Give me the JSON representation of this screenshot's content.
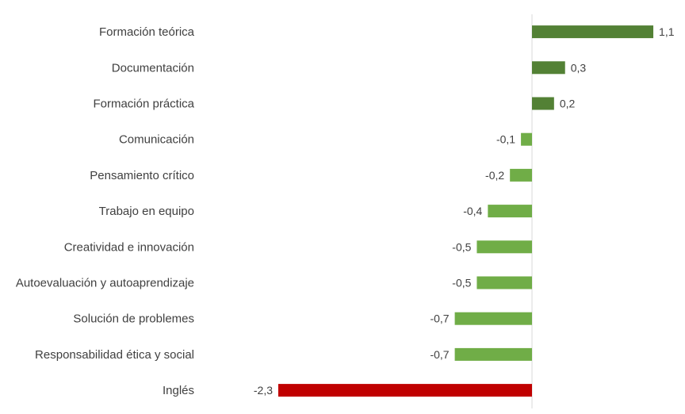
{
  "chart_data": {
    "type": "bar",
    "orientation": "horizontal",
    "categories": [
      "Formación teórica",
      "Documentación",
      "Formación práctica",
      "Comunicación",
      "Pensamiento crítico",
      "Trabajo en equipo",
      "Creatividad e innovación",
      "Autoevaluación y autoaprendizaje",
      "Solución de problemes",
      "Responsabilidad ética y social",
      "Inglés"
    ],
    "values": [
      1.1,
      0.3,
      0.2,
      -0.1,
      -0.2,
      -0.4,
      -0.5,
      -0.5,
      -0.7,
      -0.7,
      -2.3
    ],
    "value_labels": [
      "1,1",
      "0,3",
      "0,2",
      "-0,1",
      "-0,2",
      "-0,4",
      "-0,5",
      "-0,5",
      "-0,7",
      "-0,7",
      "-2,3"
    ],
    "xlim": [
      -2.3,
      1.1
    ],
    "colors": {
      "positive": "#538135",
      "negative": "#70ad47",
      "highlight": "#c00000",
      "text": "#404040",
      "axis": "#d9d9d9"
    },
    "highlight_index": 10,
    "title": "",
    "xlabel": "",
    "ylabel": "",
    "grid": false,
    "legend": "none"
  }
}
